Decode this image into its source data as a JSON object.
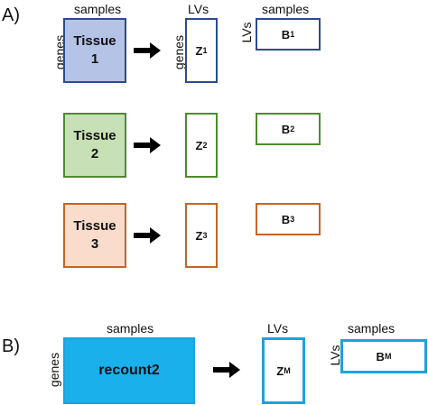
{
  "panel_a": {
    "label": "A)",
    "samples_label": "samples",
    "lvs_label": "LVs",
    "samples_label_b": "samples",
    "genes_label": "genes",
    "genes_label_z": "genes",
    "lvs_label_b": "LVs",
    "rows": [
      {
        "tissue_word": "Tissue",
        "tissue_num": "1",
        "z_main": "Z",
        "z_sub": "1",
        "b_main": "B",
        "b_sub": "1",
        "border_color": "#2e4a8e",
        "fill_color": "#b4c3e6"
      },
      {
        "tissue_word": "Tissue",
        "tissue_num": "2",
        "z_main": "Z",
        "z_sub": "2",
        "b_main": "B",
        "b_sub": "2",
        "border_color": "#4f8a2f",
        "fill_color": "#c7e0b6"
      },
      {
        "tissue_word": "Tissue",
        "tissue_num": "3",
        "z_main": "Z",
        "z_sub": "3",
        "b_main": "B",
        "b_sub": "3",
        "border_color": "#c0662a",
        "fill_color": "#f9dccb"
      }
    ]
  },
  "panel_b": {
    "label": "B)",
    "samples_label": "samples",
    "lvs_label": "LVs",
    "samples_label_b": "samples",
    "genes_label": "genes",
    "lvs_label_b": "LVs",
    "recount_label": "recount2",
    "z_main": "Z",
    "z_sub": "M",
    "b_main": "B",
    "b_sub": "M",
    "border_color": "#1ca3dd",
    "fill_color": "#1ab0ec"
  },
  "arrow_color": "#000000"
}
